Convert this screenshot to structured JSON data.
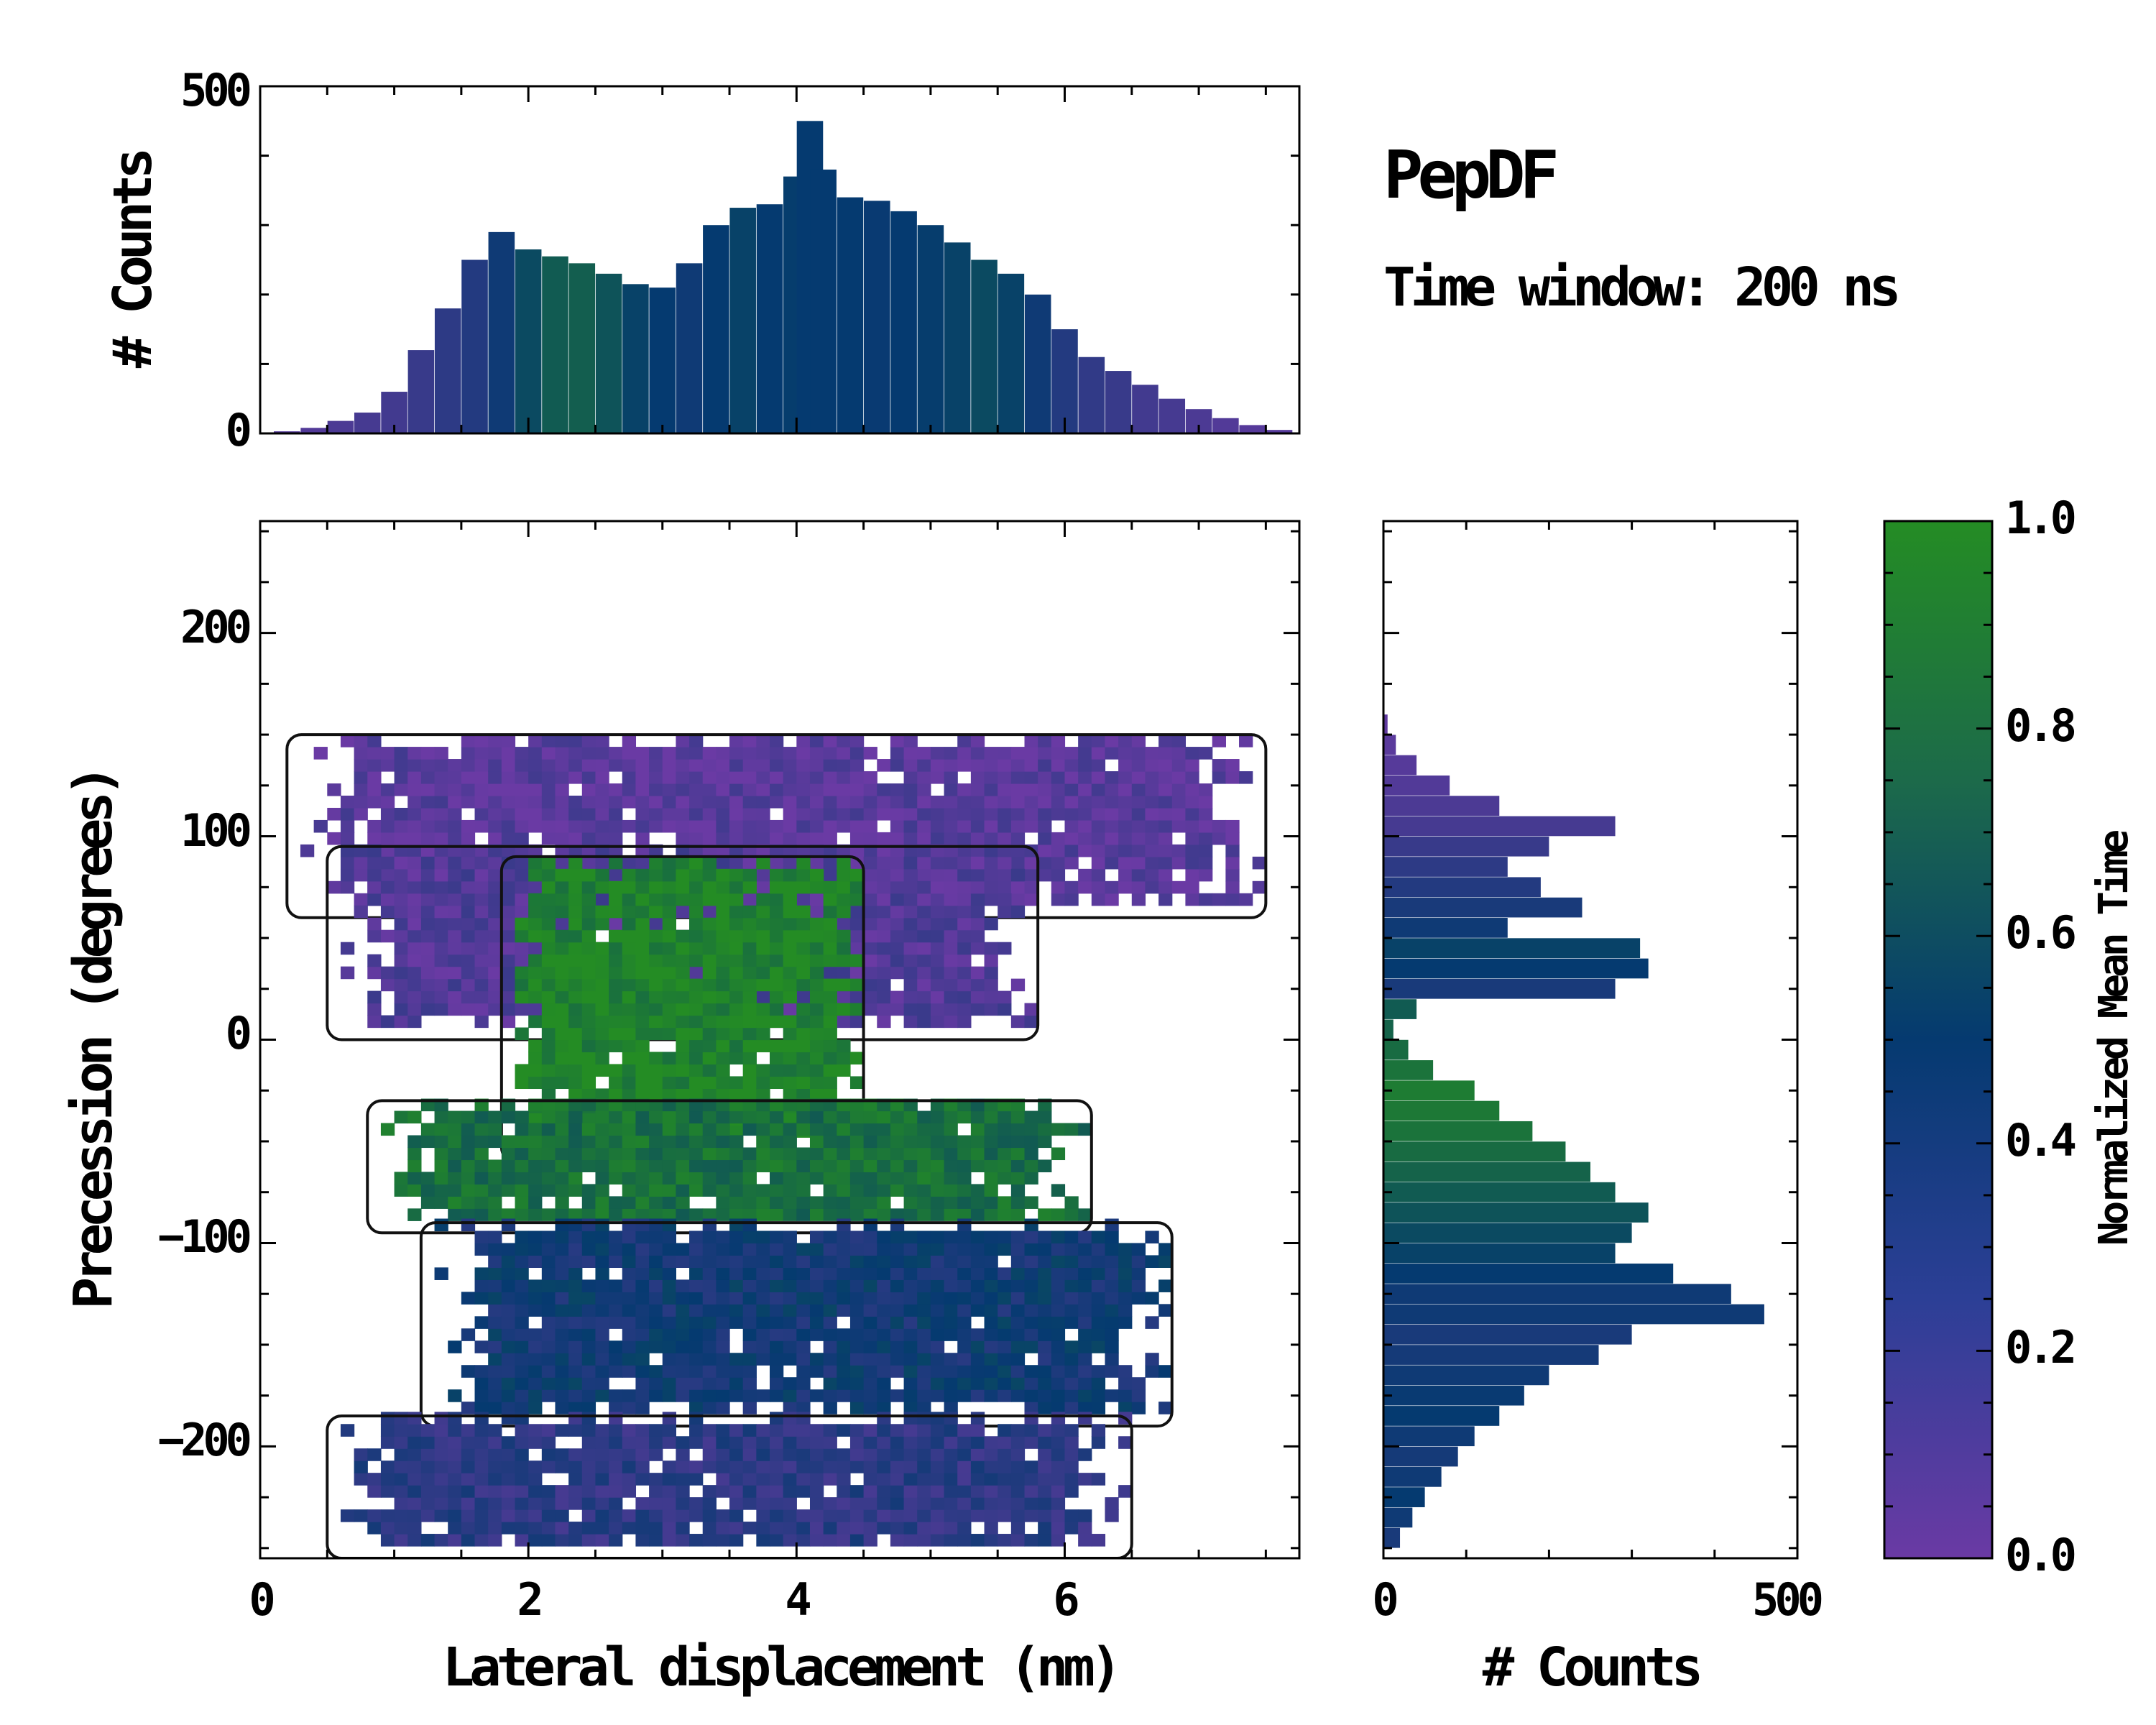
{
  "title": "PepDF",
  "subtitle": "Time window: 200 ns",
  "colors": {
    "low": "#6a3aa4",
    "mid": "#053a70",
    "high": "#248c24"
  },
  "chart_data": [
    {
      "type": "bar",
      "panel": "top-marginal",
      "ylabel": "# Counts",
      "xlim": [
        0,
        7.75
      ],
      "ylim": [
        0,
        500
      ],
      "yticks": [
        "0",
        "500"
      ],
      "x": [
        0.2,
        0.4,
        0.6,
        0.8,
        1.0,
        1.2,
        1.4,
        1.6,
        1.8,
        2.0,
        2.2,
        2.4,
        2.6,
        2.8,
        3.0,
        3.2,
        3.4,
        3.6,
        3.8,
        4.0,
        4.1,
        4.2,
        4.4,
        4.6,
        4.8,
        5.0,
        5.2,
        5.4,
        5.6,
        5.8,
        6.0,
        6.2,
        6.4,
        6.6,
        6.8,
        7.0,
        7.2,
        7.4,
        7.6
      ],
      "values": [
        3,
        8,
        18,
        30,
        60,
        120,
        180,
        250,
        290,
        265,
        255,
        245,
        230,
        215,
        210,
        245,
        300,
        325,
        330,
        370,
        450,
        380,
        340,
        335,
        320,
        300,
        275,
        250,
        230,
        200,
        150,
        110,
        90,
        70,
        50,
        35,
        22,
        12,
        5
      ],
      "color_values": [
        0.1,
        0.12,
        0.15,
        0.18,
        0.2,
        0.25,
        0.3,
        0.35,
        0.45,
        0.6,
        0.7,
        0.72,
        0.65,
        0.55,
        0.5,
        0.45,
        0.5,
        0.55,
        0.5,
        0.52,
        0.5,
        0.5,
        0.5,
        0.48,
        0.5,
        0.52,
        0.55,
        0.6,
        0.55,
        0.45,
        0.35,
        0.28,
        0.25,
        0.2,
        0.18,
        0.15,
        0.12,
        0.1,
        0.1
      ]
    },
    {
      "type": "heatmap",
      "panel": "main",
      "xlabel": "Lateral displacement (nm)",
      "ylabel": "Precession (degrees)",
      "xlim": [
        0,
        7.75
      ],
      "ylim": [
        -255,
        255
      ],
      "xticks": [
        "0",
        "2",
        "4",
        "6"
      ],
      "yticks": [
        "−200",
        "−100",
        "0",
        "100",
        "200"
      ],
      "clusters": [
        {
          "x": [
            0.2,
            7.5
          ],
          "y": [
            60,
            150
          ],
          "value": 0.08
        },
        {
          "x": [
            0.5,
            5.8
          ],
          "y": [
            0,
            95
          ],
          "value": 0.12
        },
        {
          "x": [
            1.8,
            4.5
          ],
          "y": [
            -60,
            90
          ],
          "value": 0.95
        },
        {
          "x": [
            0.8,
            6.2
          ],
          "y": [
            -95,
            -30
          ],
          "value": 0.82
        },
        {
          "x": [
            1.2,
            6.8
          ],
          "y": [
            -190,
            -90
          ],
          "value": 0.45
        },
        {
          "x": [
            0.5,
            6.5
          ],
          "y": [
            -255,
            -185
          ],
          "value": 0.3
        }
      ]
    },
    {
      "type": "bar",
      "orientation": "horizontal",
      "panel": "right-marginal",
      "xlabel": "# Counts",
      "xlim": [
        0,
        500
      ],
      "xticks": [
        "0",
        "500"
      ],
      "y": [
        155,
        145,
        135,
        125,
        115,
        105,
        95,
        85,
        75,
        65,
        55,
        45,
        35,
        25,
        15,
        5,
        -5,
        -15,
        -25,
        -35,
        -45,
        -55,
        -65,
        -75,
        -85,
        -95,
        -105,
        -115,
        -125,
        -135,
        -145,
        -155,
        -165,
        -175,
        -185,
        -195,
        -205,
        -215,
        -225,
        -235,
        -245
      ],
      "values": [
        5,
        15,
        40,
        80,
        140,
        280,
        200,
        150,
        190,
        240,
        150,
        310,
        320,
        280,
        40,
        12,
        30,
        60,
        110,
        140,
        180,
        220,
        250,
        280,
        320,
        300,
        280,
        350,
        420,
        460,
        300,
        260,
        200,
        170,
        140,
        110,
        90,
        70,
        50,
        35,
        20
      ],
      "color_values": [
        0.05,
        0.08,
        0.1,
        0.12,
        0.15,
        0.18,
        0.25,
        0.3,
        0.35,
        0.4,
        0.45,
        0.55,
        0.5,
        0.4,
        0.7,
        0.75,
        0.8,
        0.85,
        0.9,
        0.88,
        0.85,
        0.8,
        0.75,
        0.7,
        0.65,
        0.6,
        0.55,
        0.5,
        0.45,
        0.45,
        0.4,
        0.42,
        0.45,
        0.48,
        0.5,
        0.45,
        0.42,
        0.45,
        0.5,
        0.45,
        0.4
      ]
    },
    {
      "type": "colorbar",
      "label": "Normalized Mean Time",
      "range": [
        0.0,
        1.0
      ],
      "ticks": [
        "0.0",
        "0.2",
        "0.4",
        "0.6",
        "0.8",
        "1.0"
      ]
    }
  ]
}
